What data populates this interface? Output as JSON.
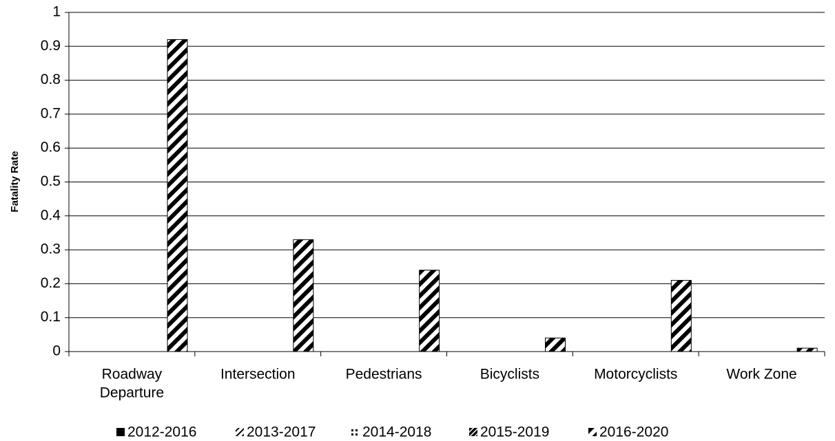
{
  "chart_data": {
    "type": "bar",
    "y_label": "Fatality Rate",
    "categories": [
      [
        "Roadway",
        "Departure"
      ],
      [
        "Intersection"
      ],
      [
        "Pedestrians"
      ],
      [
        "Bicyclists"
      ],
      [
        "Motorcyclists"
      ],
      [
        "Work Zone"
      ]
    ],
    "series": [
      {
        "name": "2012-2016",
        "color": "#000000",
        "values": [
          null,
          null,
          null,
          null,
          null,
          null
        ]
      },
      {
        "name": "2013-2017",
        "color": "#000000",
        "values": [
          null,
          null,
          null,
          null,
          null,
          null
        ]
      },
      {
        "name": "2014-2018",
        "color": "#000000",
        "values": [
          null,
          null,
          null,
          null,
          null,
          null
        ]
      },
      {
        "name": "2015-2019",
        "color": "#000000",
        "values": [
          null,
          null,
          null,
          null,
          null,
          null
        ]
      },
      {
        "name": "2016-2020",
        "color": "#000000",
        "values": [
          0.92,
          0.33,
          0.24,
          0.04,
          0.21,
          0.01
        ]
      }
    ],
    "ylim": [
      0,
      1
    ],
    "yticks": [
      0,
      0.1,
      0.2,
      0.3,
      0.4,
      0.5,
      0.6,
      0.7,
      0.8,
      0.9,
      1
    ],
    "grid": true,
    "legend": "bottom"
  }
}
